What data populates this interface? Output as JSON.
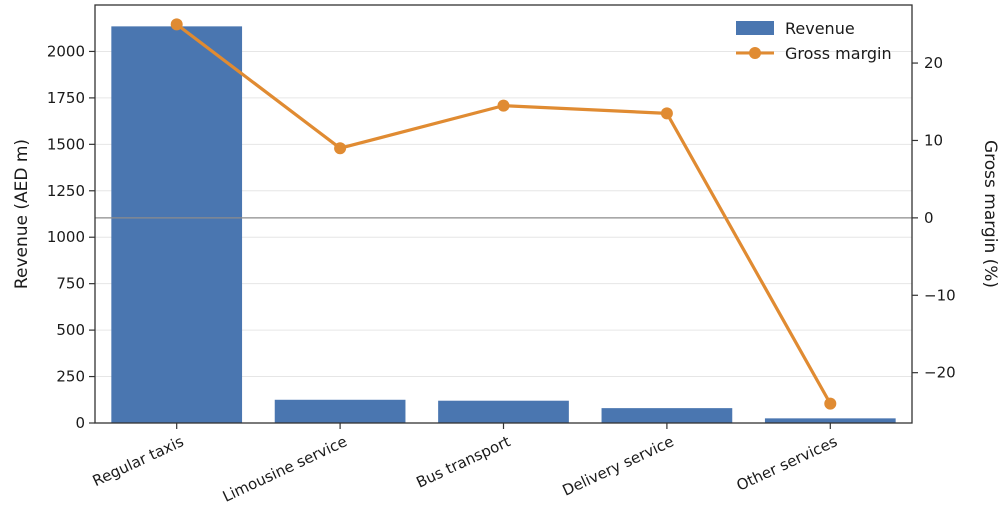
{
  "chart_data": {
    "type": "bar",
    "categories": [
      "Regular taxis",
      "Limousine service",
      "Bus transport",
      "Delivery service",
      "Other services"
    ],
    "series": [
      {
        "name": "Revenue",
        "kind": "bar",
        "axis": "left",
        "color": "#4a76b0",
        "values": [
          2135,
          125,
          120,
          80,
          25
        ]
      },
      {
        "name": "Gross margin",
        "kind": "line",
        "axis": "right",
        "color": "#e08b32",
        "values": [
          25.0,
          9.0,
          14.5,
          13.5,
          -24.0
        ]
      }
    ],
    "ylabel": "Revenue (AED m)",
    "y2label": "Gross margin (%)",
    "ylim": [
      0,
      2250
    ],
    "y2lim": [
      -26.5,
      27.5
    ],
    "yticks": [
      0,
      250,
      500,
      750,
      1000,
      1250,
      1500,
      1750,
      2000
    ],
    "y2ticks": [
      -20,
      -10,
      0,
      10,
      20
    ],
    "y2tick_labels": [
      "−20",
      "−10",
      "0",
      "10",
      "20"
    ],
    "reference_line": {
      "axis": "right",
      "value": 0,
      "color": "#8c8c8c"
    },
    "grid": "horizontal",
    "legend": "top-right"
  }
}
